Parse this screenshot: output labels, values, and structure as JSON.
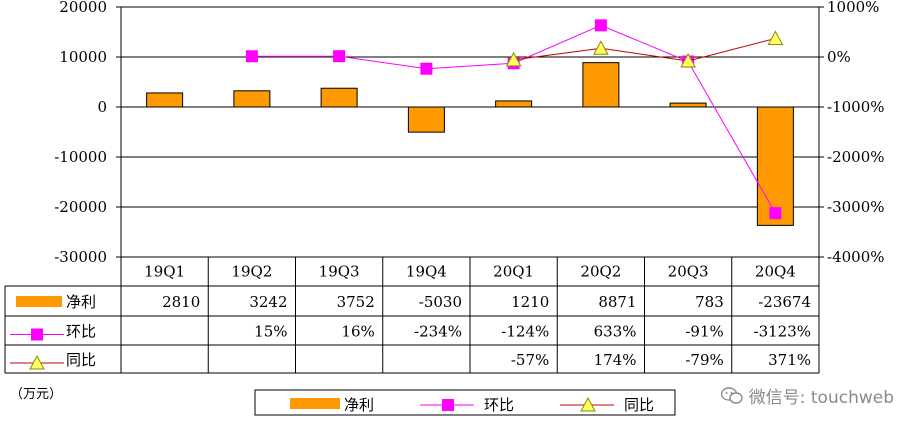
{
  "chart_data": {
    "type": "bar",
    "categories": [
      "19Q1",
      "19Q2",
      "19Q3",
      "19Q4",
      "20Q1",
      "20Q2",
      "20Q3",
      "20Q4"
    ],
    "y_left": {
      "ylim": [
        -30000,
        20000
      ],
      "ticks": [
        "20000",
        "10000",
        "0",
        "-10000",
        "-20000",
        "-30000"
      ],
      "tick_values": [
        20000,
        10000,
        0,
        -10000,
        -20000,
        -30000
      ]
    },
    "y_right": {
      "ylim": [
        -4000,
        1000
      ],
      "ticks": [
        "1000%",
        "0%",
        "-1000%",
        "-2000%",
        "-3000%",
        "-4000%"
      ],
      "tick_values": [
        1000,
        0,
        -1000,
        -2000,
        -3000,
        -4000
      ]
    },
    "series": [
      {
        "name": "净利",
        "kind": "bar",
        "axis": "left",
        "color": "#ff9900",
        "values": [
          2810,
          3242,
          3752,
          -5030,
          1210,
          8871,
          783,
          -23674
        ],
        "labels": [
          "2810",
          "3242",
          "3752",
          "-5030",
          "1210",
          "8871",
          "783",
          "-23674"
        ]
      },
      {
        "name": "环比",
        "kind": "line",
        "axis": "right",
        "color": "#ff00ff",
        "marker": "square",
        "values": [
          null,
          15,
          16,
          -234,
          -124,
          633,
          -91,
          -3123
        ],
        "labels": [
          "",
          "15%",
          "16%",
          "-234%",
          "-124%",
          "633%",
          "-91%",
          "-3123%"
        ]
      },
      {
        "name": "同比",
        "kind": "line",
        "axis": "right",
        "color": "#c00000",
        "marker": "triangle",
        "marker_fill": "#ffff66",
        "values": [
          null,
          null,
          null,
          null,
          -57,
          174,
          -79,
          371
        ],
        "labels": [
          "",
          "",
          "",
          "",
          "-57%",
          "174%",
          "-79%",
          "371%"
        ]
      }
    ],
    "unit": "（万元）",
    "legend_position": "bottom"
  },
  "watermark": {
    "text": "微信号: touchweb",
    "icon": "wechat-icon"
  }
}
